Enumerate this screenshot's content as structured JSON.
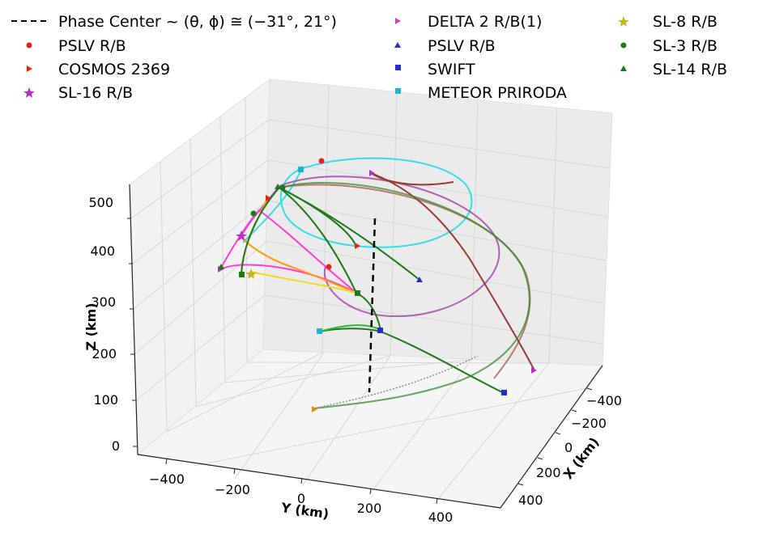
{
  "chart_data": {
    "type": "line3d",
    "title": "",
    "xlabel": "X (km)",
    "ylabel": "Y (km)",
    "zlabel": "Z (km)",
    "x_ticks": [
      "−400",
      "−200",
      "0",
      "200",
      "400"
    ],
    "y_ticks": [
      "−400",
      "−200",
      "0",
      "200",
      "400"
    ],
    "z_ticks": [
      "0",
      "100",
      "200",
      "300",
      "400",
      "500"
    ],
    "grid": true,
    "legend_position": "top",
    "phase_center": {
      "label": "Phase Center ~ (θ, ϕ) ≅ (−31°, 21°)",
      "color": "#000000",
      "style": "dashed"
    },
    "series": [
      {
        "name": "PSLV R/B",
        "marker": "circle",
        "color": "#e8230e"
      },
      {
        "name": "COSMOS 2369",
        "marker": "triangle-right",
        "color": "#e8230e"
      },
      {
        "name": "SL-16 R/B",
        "marker": "star",
        "color": "#b530c4"
      },
      {
        "name": "DELTA 2 R/B(1)",
        "marker": "triangle-right",
        "color": "#b530c4"
      },
      {
        "name": "PSLV R/B",
        "marker": "triangle-up",
        "color": "#1f2fd6"
      },
      {
        "name": "SWIFT",
        "marker": "square",
        "color": "#1f2fd6"
      },
      {
        "name": "METEOR PRIRODA",
        "marker": "square",
        "color": "#1fb5c9"
      },
      {
        "name": "SL-8 R/B",
        "marker": "star",
        "color": "#c9b21f"
      },
      {
        "name": "SL-3 R/B",
        "marker": "circle",
        "color": "#1a7a1a"
      },
      {
        "name": "SL-14 R/B",
        "marker": "triangle-up",
        "color": "#1a7a1a"
      }
    ]
  }
}
